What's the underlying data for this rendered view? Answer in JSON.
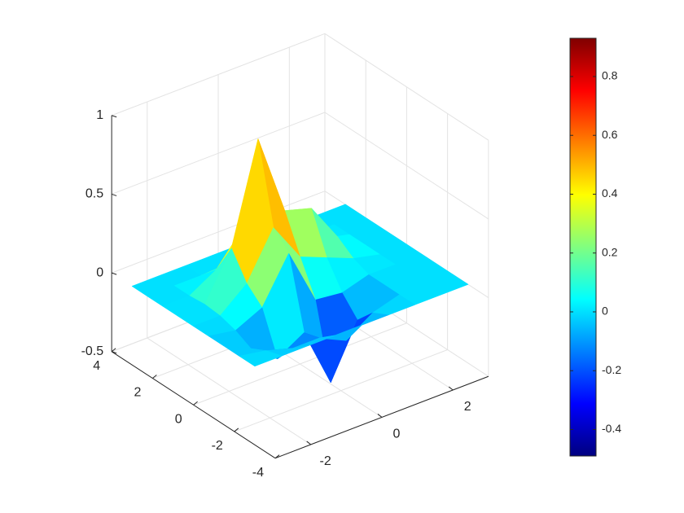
{
  "chart_data": {
    "type": "surface",
    "x": [
      -3,
      -2.25,
      -1.5,
      -0.75,
      0,
      0.75,
      1.5,
      2.25,
      3
    ],
    "y": [
      -3,
      -2.25,
      -1.5,
      -0.75,
      0,
      0.75,
      1.5,
      2.25,
      3
    ],
    "z": [
      [
        0,
        0,
        0,
        0,
        0,
        0,
        0,
        0,
        0
      ],
      [
        0,
        -0.03,
        -0.08,
        -0.08,
        -0.16,
        -0.05,
        0,
        0,
        0
      ],
      [
        0,
        -0.08,
        -0.21,
        -0.11,
        -0.49,
        -0.16,
        0,
        0,
        0
      ],
      [
        0,
        -0.03,
        0.05,
        0.33,
        -0.03,
        -0.05,
        0,
        0,
        0
      ],
      [
        0,
        0,
        0.14,
        0.43,
        0.18,
        0.11,
        0.04,
        0,
        0
      ],
      [
        0,
        0.01,
        0.3,
        0.93,
        0.41,
        0.36,
        0.11,
        0,
        0
      ],
      [
        0,
        0,
        0.1,
        0.3,
        0.14,
        0.11,
        0.04,
        0,
        0
      ],
      [
        0,
        0,
        0,
        0.01,
        0,
        0,
        0,
        0,
        0
      ],
      [
        0,
        0,
        0,
        0,
        0,
        0,
        0,
        0,
        0
      ]
    ],
    "xlim": [
      -3,
      3
    ],
    "ylim": [
      -4,
      4
    ],
    "zlim": [
      -0.5,
      1
    ],
    "xticks": [
      -2,
      0,
      2
    ],
    "yticks": [
      -4,
      -2,
      0,
      2,
      4
    ],
    "zticks": [
      -0.5,
      0,
      0.5,
      1
    ],
    "grid": true,
    "colormap": "jet",
    "colorbar": {
      "clim": [
        -0.49,
        0.93
      ],
      "ticks": [
        -0.4,
        -0.2,
        0,
        0.2,
        0.4,
        0.6,
        0.8
      ]
    }
  }
}
